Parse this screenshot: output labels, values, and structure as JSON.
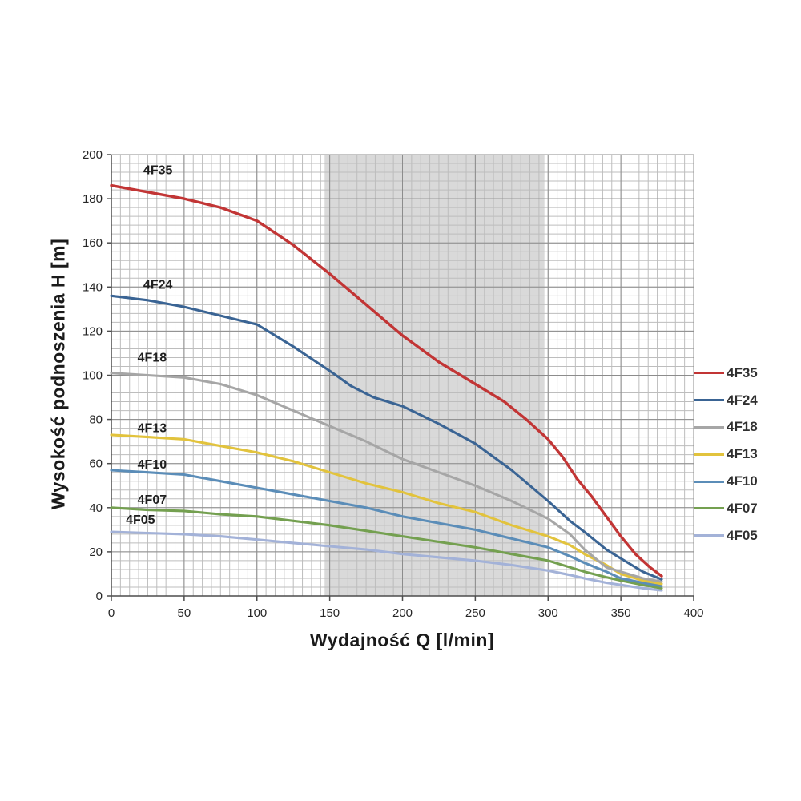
{
  "chart_data": {
    "type": "line",
    "title": "",
    "xlabel": "Wydajność Q [l/min]",
    "ylabel": "Wysokość podnoszenia H [m]",
    "xlim": [
      0,
      400
    ],
    "ylim": [
      0,
      200
    ],
    "x_ticks": [
      0,
      50,
      100,
      150,
      200,
      250,
      300,
      350,
      400
    ],
    "y_ticks": [
      0,
      20,
      40,
      60,
      80,
      100,
      120,
      140,
      160,
      180,
      200
    ],
    "x_minor_step": 6.25,
    "y_minor_step": 4,
    "grid": true,
    "legend_position": "right-outside",
    "shaded_band": {
      "x_from": 146.5,
      "x_to": 297.5,
      "color": "#d9d9d9"
    },
    "colors": {
      "axis": "#4d4d4d",
      "major_grid": "#8c8c8c",
      "minor_grid": "#bdbdbd",
      "tick_label": "#262626"
    },
    "series": [
      {
        "name": "4F35",
        "color": "#c23535",
        "label_at": [
          32,
          193
        ],
        "points": [
          [
            0,
            186
          ],
          [
            25,
            183
          ],
          [
            50,
            180
          ],
          [
            75,
            176
          ],
          [
            100,
            170
          ],
          [
            125,
            159
          ],
          [
            150,
            146
          ],
          [
            175,
            132
          ],
          [
            200,
            118
          ],
          [
            225,
            106
          ],
          [
            250,
            96
          ],
          [
            270,
            88
          ],
          [
            285,
            80
          ],
          [
            300,
            71
          ],
          [
            310,
            63
          ],
          [
            320,
            53
          ],
          [
            330,
            45
          ],
          [
            340,
            36
          ],
          [
            350,
            27
          ],
          [
            360,
            19
          ],
          [
            370,
            13
          ],
          [
            378,
            9
          ]
        ]
      },
      {
        "name": "4F24",
        "color": "#3a6494",
        "label_at": [
          32,
          141
        ],
        "points": [
          [
            0,
            136
          ],
          [
            25,
            134
          ],
          [
            50,
            131
          ],
          [
            75,
            127
          ],
          [
            100,
            123
          ],
          [
            125,
            113
          ],
          [
            150,
            102
          ],
          [
            165,
            95
          ],
          [
            180,
            90
          ],
          [
            200,
            86
          ],
          [
            225,
            78
          ],
          [
            250,
            69
          ],
          [
            275,
            57
          ],
          [
            300,
            43
          ],
          [
            315,
            34
          ],
          [
            325,
            29
          ],
          [
            340,
            21
          ],
          [
            350,
            17
          ],
          [
            365,
            11
          ],
          [
            378,
            7.5
          ]
        ]
      },
      {
        "name": "4F18",
        "color": "#a6a6a6",
        "label_at": [
          28,
          108
        ],
        "points": [
          [
            0,
            101
          ],
          [
            25,
            100
          ],
          [
            50,
            99
          ],
          [
            75,
            96
          ],
          [
            100,
            91
          ],
          [
            125,
            84
          ],
          [
            150,
            77
          ],
          [
            175,
            70
          ],
          [
            200,
            62
          ],
          [
            225,
            56
          ],
          [
            250,
            50
          ],
          [
            275,
            43
          ],
          [
            300,
            35
          ],
          [
            315,
            28
          ],
          [
            325,
            21
          ],
          [
            340,
            13
          ],
          [
            350,
            11
          ],
          [
            365,
            8
          ],
          [
            378,
            6.5
          ]
        ]
      },
      {
        "name": "4F13",
        "color": "#e2c33d",
        "label_at": [
          28,
          76
        ],
        "points": [
          [
            0,
            73
          ],
          [
            25,
            72
          ],
          [
            50,
            71
          ],
          [
            75,
            68
          ],
          [
            100,
            65
          ],
          [
            125,
            61
          ],
          [
            150,
            56
          ],
          [
            175,
            51
          ],
          [
            200,
            47
          ],
          [
            225,
            42
          ],
          [
            250,
            38
          ],
          [
            275,
            32
          ],
          [
            300,
            27
          ],
          [
            315,
            23
          ],
          [
            325,
            19
          ],
          [
            340,
            14
          ],
          [
            350,
            10
          ],
          [
            365,
            7
          ],
          [
            378,
            5.5
          ]
        ]
      },
      {
        "name": "4F10",
        "color": "#5b8db8",
        "label_at": [
          28,
          59.5
        ],
        "points": [
          [
            0,
            57
          ],
          [
            25,
            56
          ],
          [
            50,
            55
          ],
          [
            75,
            52
          ],
          [
            100,
            49
          ],
          [
            125,
            46
          ],
          [
            150,
            43
          ],
          [
            175,
            40
          ],
          [
            200,
            36
          ],
          [
            225,
            33
          ],
          [
            250,
            30
          ],
          [
            275,
            26
          ],
          [
            300,
            22
          ],
          [
            315,
            18
          ],
          [
            325,
            15
          ],
          [
            340,
            11
          ],
          [
            350,
            8
          ],
          [
            365,
            6
          ],
          [
            378,
            4.5
          ]
        ]
      },
      {
        "name": "4F07",
        "color": "#74a050",
        "label_at": [
          28,
          43.5
        ],
        "points": [
          [
            0,
            40
          ],
          [
            25,
            39
          ],
          [
            50,
            38.5
          ],
          [
            75,
            37
          ],
          [
            100,
            36
          ],
          [
            125,
            34
          ],
          [
            150,
            32
          ],
          [
            175,
            29.5
          ],
          [
            200,
            27
          ],
          [
            225,
            24.5
          ],
          [
            250,
            22
          ],
          [
            275,
            19
          ],
          [
            300,
            16
          ],
          [
            315,
            13
          ],
          [
            325,
            11
          ],
          [
            340,
            8.5
          ],
          [
            350,
            7
          ],
          [
            365,
            5
          ],
          [
            378,
            3.5
          ]
        ]
      },
      {
        "name": "4F05",
        "color": "#a3b2d8",
        "label_at": [
          20,
          34.5
        ],
        "points": [
          [
            0,
            29
          ],
          [
            25,
            28.5
          ],
          [
            50,
            28
          ],
          [
            75,
            27
          ],
          [
            100,
            25.5
          ],
          [
            125,
            24
          ],
          [
            150,
            22.5
          ],
          [
            175,
            21
          ],
          [
            200,
            19
          ],
          [
            225,
            17.5
          ],
          [
            250,
            16
          ],
          [
            275,
            14
          ],
          [
            300,
            11.5
          ],
          [
            315,
            9.5
          ],
          [
            325,
            8
          ],
          [
            340,
            6
          ],
          [
            350,
            5
          ],
          [
            365,
            3.5
          ],
          [
            378,
            2.5
          ]
        ]
      }
    ]
  }
}
